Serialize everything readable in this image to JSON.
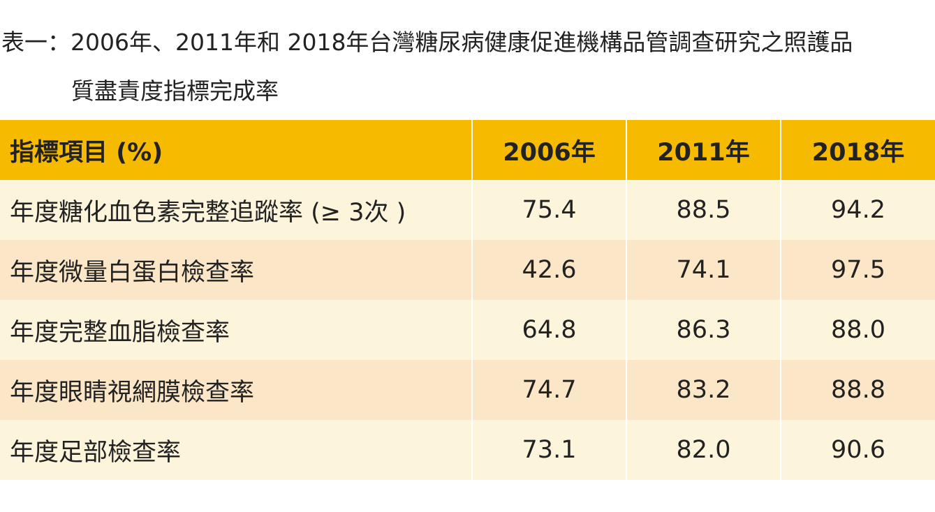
{
  "caption": {
    "line1": "表一：2006年、2011年和 2018年台灣糖尿病健康促進機構品管調查研究之照護品",
    "line2": "質盡責度指標完成率"
  },
  "colors": {
    "header_bg": "#f6bb00",
    "row_light": "#fdf4dc",
    "row_dark": "#fbe7c7"
  },
  "table": {
    "headers": [
      "指標項目 (%)",
      "2006年",
      "2011年",
      "2018年"
    ],
    "rows": [
      {
        "label": "年度糖化血色素完整追蹤率 (≥ 3次 )",
        "values": [
          "75.4",
          "88.5",
          "94.2"
        ]
      },
      {
        "label": "年度微量白蛋白檢查率",
        "values": [
          "42.6",
          "74.1",
          "97.5"
        ]
      },
      {
        "label": "年度完整血脂檢查率",
        "values": [
          "64.8",
          "86.3",
          "88.0"
        ]
      },
      {
        "label": "年度眼睛視網膜檢查率",
        "values": [
          "74.7",
          "83.2",
          "88.8"
        ]
      },
      {
        "label": "年度足部檢查率",
        "values": [
          "73.1",
          "82.0",
          "90.6"
        ]
      }
    ]
  }
}
